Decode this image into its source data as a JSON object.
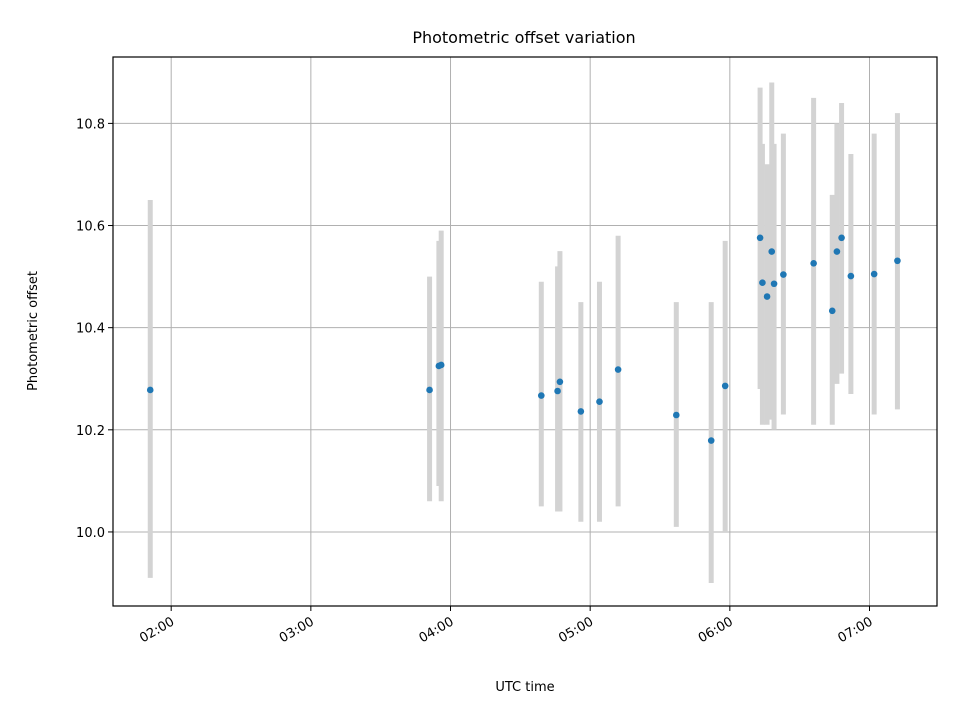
{
  "chart_data": {
    "type": "scatter",
    "title": "Photometric offset variation",
    "xlabel": "UTC time",
    "ylabel": "Photometric offset",
    "x_ticks": [
      "02:00",
      "03:00",
      "04:00",
      "05:00",
      "06:00",
      "07:00"
    ],
    "y_ticks": [
      "10.0",
      "10.2",
      "10.4",
      "10.6",
      "10.8"
    ],
    "grid": true,
    "error_bar_color": "#d3d3d3",
    "point_color": "#1f77b4",
    "points": [
      {
        "x": "01:51",
        "y": 10.278,
        "lo": 9.91,
        "hi": 10.65
      },
      {
        "x": "03:51",
        "y": 10.278,
        "lo": 10.06,
        "hi": 10.5
      },
      {
        "x": "03:55",
        "y": 10.325,
        "lo": 10.09,
        "hi": 10.57
      },
      {
        "x": "03:56",
        "y": 10.327,
        "lo": 10.06,
        "hi": 10.59
      },
      {
        "x": "04:39",
        "y": 10.267,
        "lo": 10.05,
        "hi": 10.49
      },
      {
        "x": "04:46",
        "y": 10.276,
        "lo": 10.04,
        "hi": 10.52
      },
      {
        "x": "04:47",
        "y": 10.294,
        "lo": 10.04,
        "hi": 10.55
      },
      {
        "x": "04:56",
        "y": 10.236,
        "lo": 10.02,
        "hi": 10.45
      },
      {
        "x": "05:04",
        "y": 10.255,
        "lo": 10.02,
        "hi": 10.49
      },
      {
        "x": "05:12",
        "y": 10.318,
        "lo": 10.05,
        "hi": 10.58
      },
      {
        "x": "05:37",
        "y": 10.229,
        "lo": 10.01,
        "hi": 10.45
      },
      {
        "x": "05:52",
        "y": 10.179,
        "lo": 9.9,
        "hi": 10.45
      },
      {
        "x": "05:58",
        "y": 10.286,
        "lo": 10.0,
        "hi": 10.57
      },
      {
        "x": "06:13",
        "y": 10.576,
        "lo": 10.28,
        "hi": 10.87
      },
      {
        "x": "06:14",
        "y": 10.488,
        "lo": 10.21,
        "hi": 10.76
      },
      {
        "x": "06:16",
        "y": 10.461,
        "lo": 10.21,
        "hi": 10.72
      },
      {
        "x": "06:18",
        "y": 10.549,
        "lo": 10.22,
        "hi": 10.88
      },
      {
        "x": "06:19",
        "y": 10.486,
        "lo": 10.2,
        "hi": 10.76
      },
      {
        "x": "06:23",
        "y": 10.504,
        "lo": 10.23,
        "hi": 10.78
      },
      {
        "x": "06:36",
        "y": 10.526,
        "lo": 10.21,
        "hi": 10.85
      },
      {
        "x": "06:44",
        "y": 10.433,
        "lo": 10.21,
        "hi": 10.66
      },
      {
        "x": "06:46",
        "y": 10.549,
        "lo": 10.29,
        "hi": 10.8
      },
      {
        "x": "06:48",
        "y": 10.576,
        "lo": 10.31,
        "hi": 10.84
      },
      {
        "x": "06:52",
        "y": 10.501,
        "lo": 10.27,
        "hi": 10.74
      },
      {
        "x": "07:02",
        "y": 10.505,
        "lo": 10.23,
        "hi": 10.78
      },
      {
        "x": "07:12",
        "y": 10.531,
        "lo": 10.24,
        "hi": 10.82
      }
    ],
    "xlim": [
      "01:35",
      "07:29"
    ],
    "ylim": [
      9.855,
      10.93
    ]
  }
}
